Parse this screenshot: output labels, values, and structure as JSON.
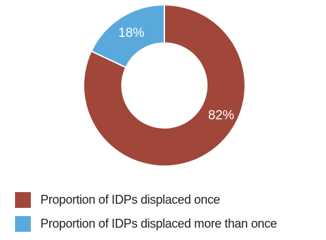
{
  "colors": {
    "once": "#a0473a",
    "more_than_once": "#5aa9dc",
    "separator": "#ffffff"
  },
  "chart_data": {
    "type": "pie",
    "variant": "donut",
    "series": [
      {
        "name": "Proportion of IDPs displaced once",
        "value": 82,
        "label": "82%",
        "color": "#a0473a"
      },
      {
        "name": "Proportion of IDPs displaced more than once",
        "value": 18,
        "label": "18%",
        "color": "#5aa9dc"
      }
    ],
    "legend_position": "bottom-left"
  },
  "legend": {
    "items": [
      {
        "label": "Proportion of IDPs displaced once"
      },
      {
        "label": "Proportion of IDPs displaced more than once"
      }
    ]
  }
}
